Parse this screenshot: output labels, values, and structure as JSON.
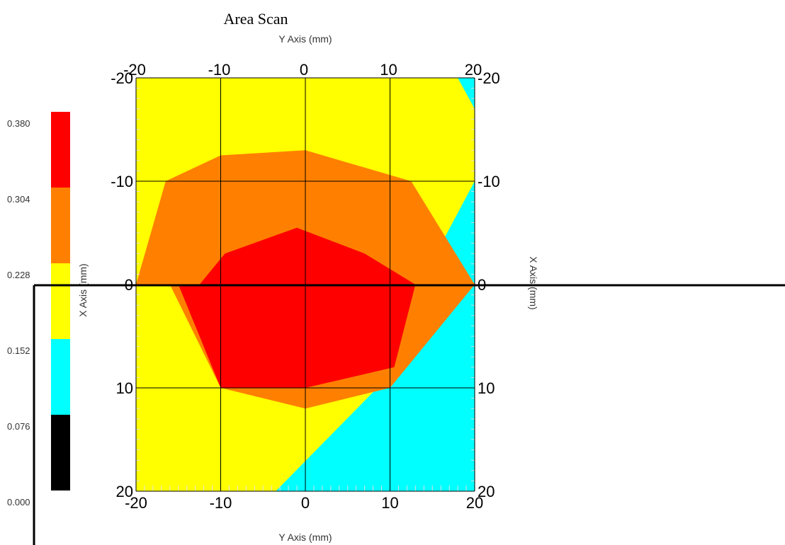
{
  "chart_data": {
    "type": "heatmap",
    "title": "Area Scan",
    "x_axis_label": "X Axis (mm)",
    "y_axis_label": "Y Axis (mm)",
    "y_axis_range": [
      -20,
      20
    ],
    "x_axis_range": [
      -20,
      20
    ],
    "x_axis_inverted": true,
    "ticks": [
      -20,
      -10,
      0,
      10,
      20
    ],
    "grid": true,
    "legend_position": "left",
    "colorbar": {
      "boundaries": [
        "0.000",
        "0.076",
        "0.152",
        "0.228",
        "0.304",
        "0.380"
      ],
      "colors": [
        "#000000",
        "#00ffff",
        "#ffff00",
        "#ff8000",
        "#ff0000"
      ]
    },
    "contour_levels": [
      {
        "name": "0.076-0.152",
        "color": "#00ffff",
        "region": "entire scan area (background)"
      },
      {
        "name": "0.152-0.228",
        "color": "#ffff00",
        "points": [
          [
            -20,
            -20
          ],
          [
            -20,
            20
          ],
          [
            -3.5,
            20
          ],
          [
            8.5,
            10
          ],
          [
            13.5,
            0
          ],
          [
            20,
            -10
          ],
          [
            20,
            -17
          ],
          [
            18,
            -20
          ],
          [
            -20,
            -20
          ]
        ]
      },
      {
        "name": "0.228-0.304",
        "color": "#ff8000",
        "points": [
          [
            -20,
            0
          ],
          [
            -16.5,
            -10
          ],
          [
            -10,
            -12.5
          ],
          [
            0,
            -13
          ],
          [
            12.5,
            -10
          ],
          [
            20,
            0
          ],
          [
            10,
            10
          ],
          [
            0,
            12
          ],
          [
            -10,
            10
          ],
          [
            -16,
            0
          ]
        ]
      },
      {
        "name": "0.304-0.380",
        "color": "#ff0000",
        "points": [
          [
            -12.5,
            0
          ],
          [
            -9.5,
            -3
          ],
          [
            -1,
            -5.5
          ],
          [
            7,
            -3
          ],
          [
            13,
            0
          ],
          [
            10.5,
            8
          ],
          [
            0,
            10
          ],
          [
            -10,
            10
          ],
          [
            -15,
            0
          ]
        ]
      }
    ]
  }
}
